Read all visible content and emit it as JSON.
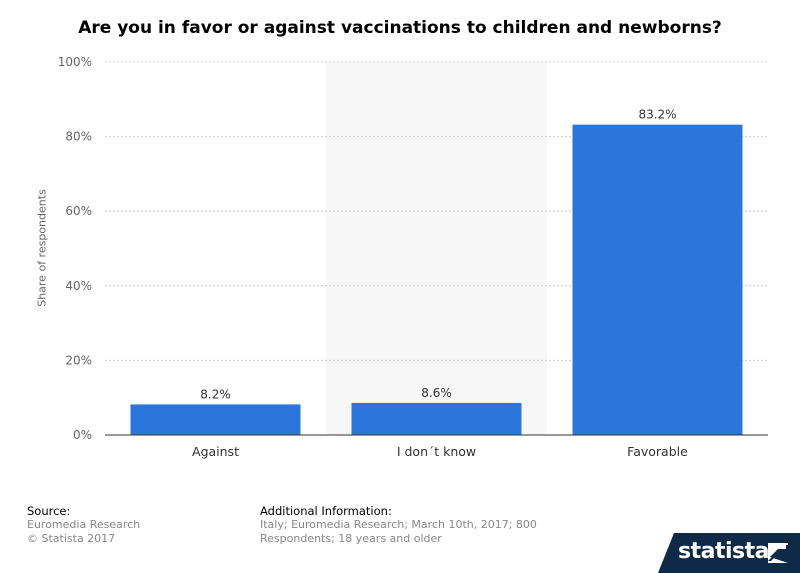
{
  "title": "Are you in favor or against vaccinations to children and newborns?",
  "chart_data": {
    "type": "bar",
    "categories": [
      "Against",
      "I don´t know",
      "Favorable"
    ],
    "values": [
      8.2,
      8.6,
      83.2
    ],
    "value_labels": [
      "8.2%",
      "8.6%",
      "83.2%"
    ],
    "ylabel": "Share of respondents",
    "ylim": [
      0,
      100
    ],
    "yticks": [
      0,
      20,
      40,
      60,
      80,
      100
    ],
    "ytick_labels": [
      "0%",
      "20%",
      "40%",
      "60%",
      "80%",
      "100%"
    ],
    "grid": true,
    "bar_color": "#2a76dd",
    "highlight_band_color": "#f7f7f7"
  },
  "footer": {
    "source_heading": "Source:",
    "source_lines": [
      "Euromedia Research",
      "© Statista 2017"
    ],
    "info_heading": "Additional Information:",
    "info_text": "Italy; Euromedia Research; March 10th, 2017; 800 Respondents; 18 years and older"
  },
  "logo": {
    "text": "statista",
    "background": "#0f2a46",
    "icon": "statista-flag-icon"
  }
}
